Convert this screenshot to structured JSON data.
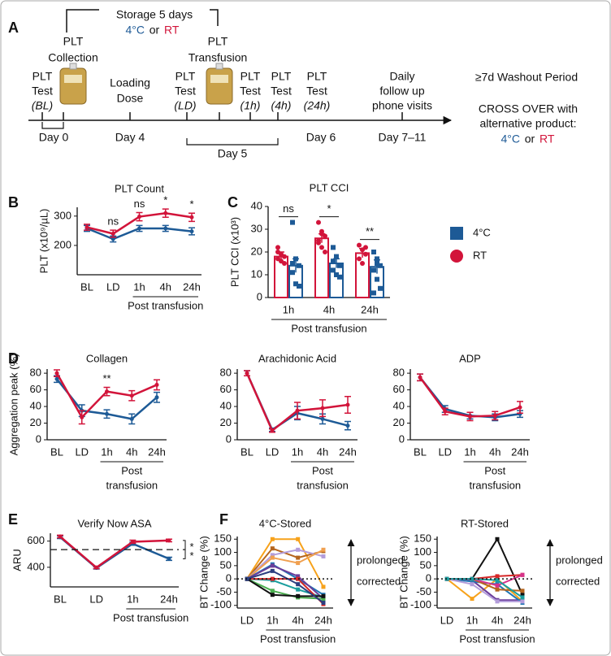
{
  "timeline": {
    "panel": "A",
    "storage": "Storage 5 days",
    "storage_temp": [
      "4°C",
      "or",
      "RT"
    ],
    "collection": [
      "PLT",
      "Collection"
    ],
    "transfusion": [
      "PLT",
      "Transfusion"
    ],
    "tests": [
      [
        "PLT",
        "Test",
        "(BL)"
      ],
      [
        "PLT",
        "Test",
        "(LD)"
      ],
      [
        "PLT",
        "Test",
        "(1h)"
      ],
      [
        "PLT",
        "Test",
        "(4h)"
      ],
      [
        "PLT",
        "Test",
        "(24h)"
      ]
    ],
    "loading": [
      "Loading",
      "Dose"
    ],
    "followup": [
      "Daily",
      "follow up",
      "phone visits"
    ],
    "washout": "≥7d Washout Period",
    "crossover": [
      "CROSS OVER with",
      "alternative product:"
    ],
    "crossover_temp": [
      "4°C",
      "or",
      "RT"
    ],
    "days": [
      "Day 0",
      "Day 4",
      "Day 5",
      "Day 6",
      "Day 7–11"
    ]
  },
  "chart_data": [
    {
      "type": "line",
      "panel": "B",
      "title": "PLT Count",
      "y_label": "PLT (x10⁹/µL)",
      "categories": [
        "BL",
        "LD",
        "1h",
        "4h",
        "24h"
      ],
      "x_group_label": [
        "Post transfusion"
      ],
      "series": [
        {
          "name": "4°C",
          "color": "#1d5a96",
          "values": [
            258,
            222,
            258,
            258,
            248
          ],
          "errors": [
            10,
            10,
            10,
            10,
            12
          ]
        },
        {
          "name": "RT",
          "color": "#d2143a",
          "values": [
            262,
            240,
            298,
            310,
            296
          ],
          "errors": [
            10,
            12,
            14,
            14,
            14
          ]
        }
      ],
      "annotations": [
        null,
        "ns",
        "ns",
        "*",
        "*"
      ],
      "ylim": [
        100,
        330
      ],
      "yticks": [
        200,
        300
      ]
    },
    {
      "type": "bar",
      "panel": "C",
      "title": "PLT CCI",
      "y_label": "PLT CCI (x10³)",
      "categories": [
        "1h",
        "4h",
        "24h"
      ],
      "x_group_label": [
        "Post transfusion"
      ],
      "series": [
        {
          "name": "4°C",
          "color": "#1d5a96",
          "marker": "square",
          "values": [
            14,
            15,
            13.5
          ],
          "errors": [
            3,
            2,
            3
          ],
          "points": [
            [
              33,
              17,
              14,
              11,
              6,
              5,
              15
            ],
            [
              22,
              18,
              14,
              12,
              10,
              9,
              16
            ],
            [
              20,
              17,
              14,
              12,
              8,
              4,
              2,
              15
            ]
          ]
        },
        {
          "name": "RT",
          "color": "#d2143a",
          "marker": "circle",
          "values": [
            18,
            26,
            19.5
          ],
          "errors": [
            2,
            2,
            2
          ],
          "points": [
            [
              22,
              19,
              18,
              17,
              16,
              15,
              20
            ],
            [
              33,
              29,
              27,
              25,
              22,
              20,
              24,
              28
            ],
            [
              23,
              21,
              19,
              17,
              15,
              22
            ]
          ]
        }
      ],
      "annotations": [
        "ns",
        "*",
        "**"
      ],
      "ylim": [
        0,
        40
      ],
      "yticks": [
        0,
        10,
        20,
        30,
        40
      ],
      "legend": "right"
    },
    {
      "type": "line",
      "panel": "D",
      "title": "Collagen",
      "y_label": "Aggregation peak (%)",
      "categories": [
        "BL",
        "LD",
        "1h",
        "4h",
        "24h"
      ],
      "x_group_label": [
        "Post",
        "transfusion"
      ],
      "series": [
        {
          "name": "4°C",
          "color": "#1d5a96",
          "values": [
            73,
            35,
            31,
            25,
            51
          ],
          "errors": [
            4,
            7,
            5,
            6,
            6
          ]
        },
        {
          "name": "RT",
          "color": "#d2143a",
          "values": [
            80,
            27,
            58,
            53,
            66
          ],
          "errors": [
            4,
            8,
            5,
            6,
            6
          ]
        }
      ],
      "annotations": [
        null,
        null,
        "**",
        null,
        null
      ],
      "ylim": [
        0,
        85
      ],
      "yticks": [
        0,
        20,
        40,
        60,
        80
      ]
    },
    {
      "type": "line",
      "title": "Arachidonic Acid",
      "categories": [
        "BL",
        "LD",
        "1h",
        "4h",
        "24h"
      ],
      "x_group_label": [
        "Post",
        "transfusion"
      ],
      "series": [
        {
          "name": "4°C",
          "color": "#1d5a96",
          "values": [
            80,
            12,
            32,
            25,
            17
          ],
          "errors": [
            3,
            2,
            8,
            6,
            5
          ]
        },
        {
          "name": "RT",
          "color": "#d2143a",
          "values": [
            80,
            11,
            35,
            38,
            42
          ],
          "errors": [
            3,
            2,
            10,
            10,
            10
          ]
        }
      ],
      "ylim": [
        0,
        85
      ],
      "yticks": [
        0,
        20,
        40,
        60,
        80
      ]
    },
    {
      "type": "line",
      "title": "ADP",
      "categories": [
        "BL",
        "LD",
        "1h",
        "4h",
        "24h"
      ],
      "x_group_label": [
        "Post",
        "transfusion"
      ],
      "series": [
        {
          "name": "4°C",
          "color": "#1d5a96",
          "values": [
            75,
            37,
            29,
            27,
            31
          ],
          "errors": [
            4,
            4,
            4,
            4,
            4
          ]
        },
        {
          "name": "RT",
          "color": "#d2143a",
          "values": [
            75,
            34,
            28,
            29,
            39
          ],
          "errors": [
            4,
            4,
            5,
            5,
            7
          ]
        }
      ],
      "ylim": [
        0,
        85
      ],
      "yticks": [
        0,
        20,
        40,
        60,
        80
      ]
    },
    {
      "type": "line",
      "panel": "E",
      "title": "Verify Now ASA",
      "y_label": "ARU",
      "categories": [
        "BL",
        "LD",
        "1h",
        "24h"
      ],
      "x_group_label": [
        "Post transfusion"
      ],
      "series": [
        {
          "name": "4°C",
          "color": "#1d5a96",
          "values": [
            630,
            395,
            580,
            465
          ],
          "errors": [
            10,
            8,
            12,
            12
          ]
        },
        {
          "name": "RT",
          "color": "#d2143a",
          "values": [
            635,
            398,
            595,
            605
          ],
          "errors": [
            10,
            8,
            12,
            10
          ]
        }
      ],
      "reference_line": 535,
      "annotations": [
        "*",
        "*"
      ],
      "ylim": [
        250,
        660
      ],
      "yticks": [
        400,
        600
      ]
    },
    {
      "type": "line",
      "panel": "F",
      "title": "4°C-Stored",
      "y_label": "BT Change (%)",
      "categories": [
        "LD",
        "1h",
        "4h",
        "24h"
      ],
      "x_group_label": [
        "Post transfusion"
      ],
      "series": [
        {
          "color": "#f7a21b",
          "values": [
            0,
            150,
            150,
            -30
          ]
        },
        {
          "color": "#b5651d",
          "values": [
            0,
            115,
            80,
            105
          ]
        },
        {
          "color": "#b39ddb",
          "values": [
            0,
            90,
            110,
            85
          ]
        },
        {
          "color": "#f0a050",
          "values": [
            0,
            80,
            60,
            110
          ]
        },
        {
          "color": "#1f77b4",
          "values": [
            0,
            55,
            0,
            -60
          ]
        },
        {
          "color": "#6a3d9a",
          "values": [
            0,
            50,
            10,
            -75
          ]
        },
        {
          "color": "#1a9e9e",
          "values": [
            0,
            -5,
            -40,
            -70
          ]
        },
        {
          "color": "#d62728",
          "values": [
            0,
            0,
            0,
            -95
          ]
        },
        {
          "color": "#4caf50",
          "values": [
            0,
            -45,
            -70,
            -75
          ]
        },
        {
          "color": "#111111",
          "values": [
            0,
            -60,
            -65,
            -65
          ]
        },
        {
          "color": "#2c3e80",
          "values": [
            0,
            30,
            -20,
            -90
          ]
        }
      ],
      "zero_line": true,
      "arrow_labels": [
        "prolonged",
        "corrected"
      ],
      "ylim": [
        -110,
        160
      ],
      "yticks": [
        -100,
        -50,
        0,
        50,
        100,
        150
      ]
    },
    {
      "type": "line",
      "title": "RT-Stored",
      "y_label": "BT Change (%)",
      "categories": [
        "LD",
        "1h",
        "4h",
        "24h"
      ],
      "x_group_label": [
        "Post transfusion"
      ],
      "series": [
        {
          "color": "#111111",
          "values": [
            0,
            0,
            150,
            -60
          ]
        },
        {
          "color": "#f7a21b",
          "values": [
            0,
            -75,
            0,
            -85
          ]
        },
        {
          "color": "#6a3d9a",
          "values": [
            0,
            -5,
            -80,
            -80
          ]
        },
        {
          "color": "#d62728",
          "values": [
            0,
            0,
            10,
            15
          ]
        },
        {
          "color": "#1f77b4",
          "values": [
            0,
            -10,
            -20,
            -90
          ]
        },
        {
          "color": "#b39ddb",
          "values": [
            0,
            -20,
            -85,
            -85
          ]
        },
        {
          "color": "#b5651d",
          "values": [
            0,
            0,
            -40,
            -45
          ]
        },
        {
          "color": "#d6338a",
          "values": [
            0,
            0,
            -25,
            15
          ]
        },
        {
          "color": "#1a9e9e",
          "values": [
            0,
            0,
            -5,
            -70
          ]
        }
      ],
      "zero_line": true,
      "arrow_labels": [
        "prolonged",
        "corrected"
      ],
      "ylim": [
        -110,
        160
      ],
      "yticks": [
        -100,
        -50,
        0,
        50,
        100,
        150
      ]
    }
  ]
}
